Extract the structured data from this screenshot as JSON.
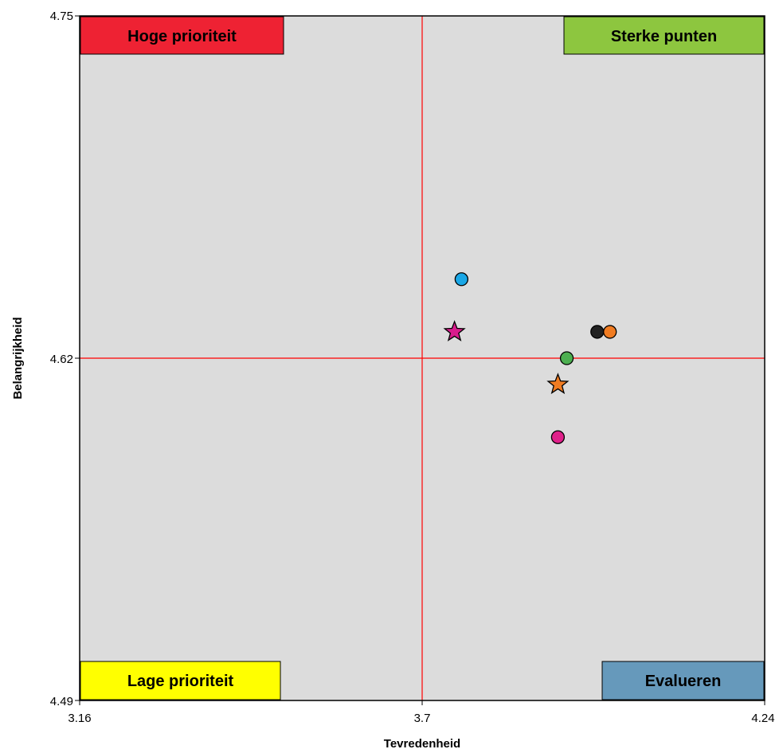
{
  "chart_data": {
    "type": "scatter",
    "title": "",
    "xlabel": "Tevredenheid",
    "ylabel": "Belangrijkheid",
    "xlim": [
      3.16,
      4.24
    ],
    "ylim": [
      4.49,
      4.75
    ],
    "x_ticks": [
      "3.16",
      "3.7",
      "4.24"
    ],
    "y_ticks": [
      "4.75",
      "4.62",
      "4.49"
    ],
    "reference_lines": {
      "x": 3.7,
      "y": 4.62,
      "color": "#ff0000"
    },
    "plot_background": "#dcdcdc",
    "grid": false,
    "quadrants": [
      {
        "label": "Hoge prioriteit",
        "position": "top-left",
        "color": "#ee2233"
      },
      {
        "label": "Sterke punten",
        "position": "top-right",
        "color": "#8dc63f"
      },
      {
        "label": "Lage prioriteit",
        "position": "bottom-left",
        "color": "#ffff00"
      },
      {
        "label": "Evalueren",
        "position": "bottom-right",
        "color": "#6699bb"
      }
    ],
    "points": [
      {
        "x": 3.762,
        "y": 4.65,
        "marker": "circle",
        "color": "#1aa7e6"
      },
      {
        "x": 3.751,
        "y": 4.63,
        "marker": "star",
        "color": "#d81b8c"
      },
      {
        "x": 3.976,
        "y": 4.63,
        "marker": "circle",
        "color": "#222222"
      },
      {
        "x": 3.996,
        "y": 4.63,
        "marker": "circle",
        "color": "#f07c22"
      },
      {
        "x": 3.928,
        "y": 4.62,
        "marker": "circle",
        "color": "#4caf50"
      },
      {
        "x": 3.914,
        "y": 4.61,
        "marker": "star",
        "color": "#f07c22"
      },
      {
        "x": 3.914,
        "y": 4.59,
        "marker": "circle",
        "color": "#e0218a"
      }
    ]
  }
}
